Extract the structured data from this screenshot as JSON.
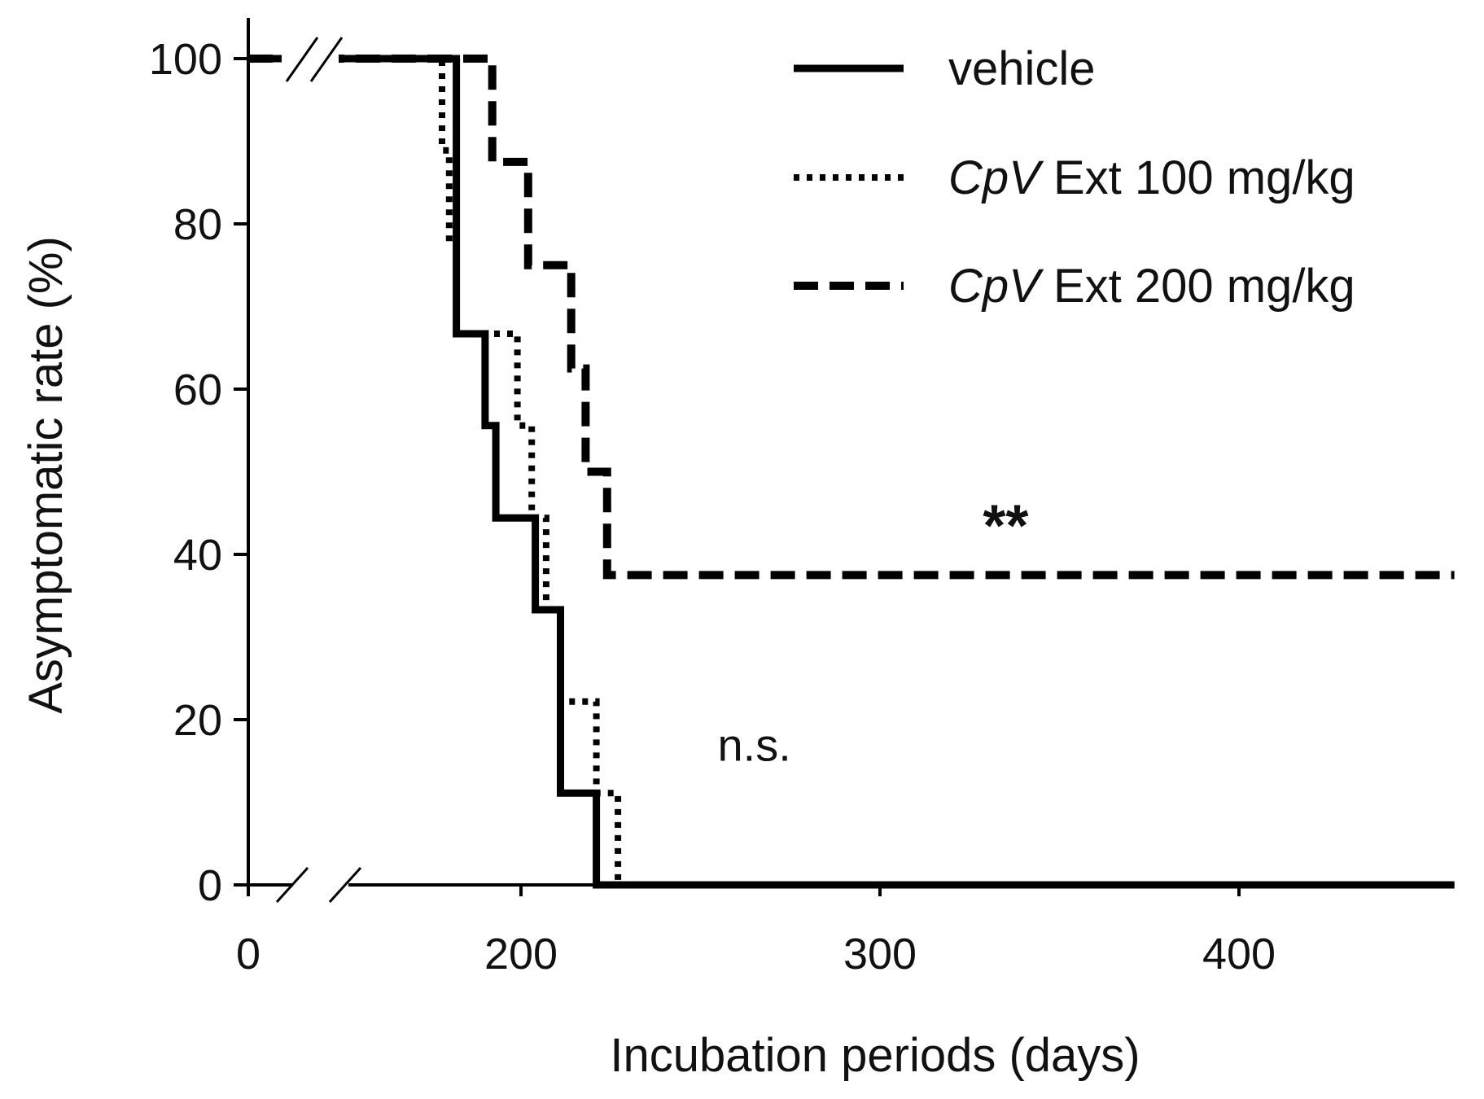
{
  "chart_data": {
    "type": "line",
    "step": true,
    "title": "",
    "xlabel": "Incubation periods (days)",
    "ylabel": "Asymptomatic rate (%)",
    "x_axis": {
      "broken": true,
      "break_from": 0,
      "break_to": 150,
      "ticks": [
        {
          "value": 0,
          "label": "0"
        },
        {
          "value": 200,
          "label": "200"
        },
        {
          "value": 300,
          "label": "300"
        },
        {
          "value": 400,
          "label": "400"
        }
      ],
      "max": 460
    },
    "y_axis": {
      "min": 0,
      "max": 100,
      "ticks": [
        {
          "value": 0,
          "label": "0"
        },
        {
          "value": 20,
          "label": "20"
        },
        {
          "value": 40,
          "label": "40"
        },
        {
          "value": 60,
          "label": "60"
        },
        {
          "value": 80,
          "label": "80"
        },
        {
          "value": 100,
          "label": "100"
        }
      ]
    },
    "legend_position": "top-right",
    "series": [
      {
        "name": "vehicle",
        "label_italic": "",
        "label_rest": "vehicle",
        "style": "solid",
        "color": "#000000",
        "points": [
          [
            0,
            100
          ],
          [
            182,
            100
          ],
          [
            182,
            66.7
          ],
          [
            190,
            66.7
          ],
          [
            190,
            55.6
          ],
          [
            193,
            55.6
          ],
          [
            193,
            44.4
          ],
          [
            204,
            44.4
          ],
          [
            204,
            33.3
          ],
          [
            211,
            33.3
          ],
          [
            211,
            11.1
          ],
          [
            221,
            11.1
          ],
          [
            221,
            0
          ],
          [
            460,
            0
          ]
        ]
      },
      {
        "name": "CpV Ext 100 mg/kg",
        "label_italic": "CpV",
        "label_rest": " Ext 100 mg/kg",
        "style": "dotted",
        "color": "#000000",
        "points": [
          [
            0,
            100
          ],
          [
            178,
            100
          ],
          [
            178,
            88.9
          ],
          [
            180,
            88.9
          ],
          [
            180,
            77.8
          ],
          [
            182,
            77.8
          ],
          [
            182,
            66.7
          ],
          [
            199,
            66.7
          ],
          [
            199,
            55.6
          ],
          [
            203,
            55.6
          ],
          [
            203,
            44.4
          ],
          [
            207,
            44.4
          ],
          [
            207,
            33.3
          ],
          [
            211,
            33.3
          ],
          [
            211,
            22.2
          ],
          [
            221,
            22.2
          ],
          [
            221,
            11.1
          ],
          [
            227,
            11.1
          ],
          [
            227,
            0
          ],
          [
            460,
            0
          ]
        ]
      },
      {
        "name": "CpV Ext 200 mg/kg",
        "label_italic": "CpV",
        "label_rest": " Ext 200 mg/kg",
        "style": "dashed",
        "color": "#000000",
        "points": [
          [
            0,
            100
          ],
          [
            192,
            100
          ],
          [
            192,
            87.5
          ],
          [
            202,
            87.5
          ],
          [
            202,
            75
          ],
          [
            214,
            75
          ],
          [
            214,
            62.5
          ],
          [
            218,
            62.5
          ],
          [
            218,
            50
          ],
          [
            224,
            50
          ],
          [
            224,
            37.5
          ],
          [
            460,
            37.5
          ]
        ]
      }
    ],
    "annotations": [
      {
        "text": "**",
        "near_series": "CpV Ext 200 mg/kg",
        "x": 335,
        "y": 44
      },
      {
        "text": "n.s.",
        "near_series": "CpV Ext 100 mg/kg",
        "x": 265,
        "y": 17
      }
    ]
  }
}
